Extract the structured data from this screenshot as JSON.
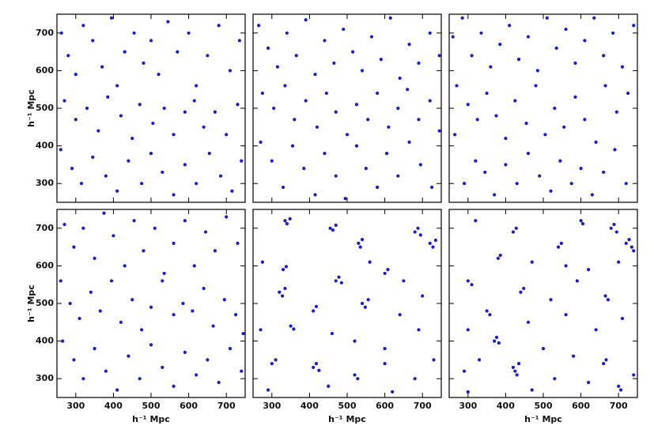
{
  "chart_data": [
    {
      "type": "scatter",
      "color": "#1a1ad0",
      "xlim": [
        250,
        750
      ],
      "ylim": [
        250,
        750
      ],
      "xticks": [
        300,
        400,
        500,
        600,
        700
      ],
      "yticks": [
        300,
        400,
        500,
        600,
        700
      ],
      "xtick_labels": false,
      "ytick_labels": true,
      "ylabel": "h⁻¹ Mpc",
      "x": [
        262,
        280,
        300,
        320,
        345,
        370,
        395,
        410,
        430,
        455,
        480,
        500,
        520,
        545,
        570,
        600,
        620,
        650,
        680,
        710,
        735,
        270,
        300,
        330,
        360,
        385,
        420,
        450,
        470,
        505,
        535,
        560,
        590,
        615,
        640,
        670,
        700,
        730,
        260,
        290,
        315,
        345,
        380,
        410,
        440,
        475,
        500,
        530,
        560,
        590,
        620,
        655,
        685,
        715,
        740
      ],
      "values": [
        700,
        640,
        590,
        720,
        680,
        610,
        740,
        560,
        650,
        700,
        620,
        680,
        590,
        730,
        650,
        700,
        560,
        640,
        720,
        600,
        680,
        520,
        470,
        500,
        440,
        530,
        480,
        420,
        510,
        460,
        500,
        430,
        490,
        520,
        450,
        490,
        430,
        510,
        390,
        340,
        300,
        370,
        320,
        280,
        360,
        300,
        380,
        330,
        270,
        350,
        300,
        380,
        320,
        280,
        360
      ]
    },
    {
      "type": "scatter",
      "color": "#1a1ad0",
      "xlim": [
        250,
        750
      ],
      "ylim": [
        250,
        750
      ],
      "xticks": [
        300,
        400,
        500,
        600,
        700
      ],
      "yticks": [
        300,
        400,
        500,
        600,
        700
      ],
      "xtick_labels": false,
      "ytick_labels": false,
      "x": [
        265,
        290,
        315,
        340,
        365,
        390,
        415,
        440,
        465,
        490,
        515,
        540,
        565,
        590,
        615,
        640,
        665,
        690,
        720,
        745,
        275,
        305,
        335,
        360,
        390,
        420,
        445,
        470,
        500,
        525,
        555,
        580,
        610,
        635,
        660,
        690,
        720,
        745,
        270,
        300,
        330,
        355,
        385,
        415,
        440,
        470,
        495,
        525,
        550,
        580,
        605,
        635,
        665,
        695,
        725
      ],
      "values": [
        720,
        660,
        610,
        700,
        640,
        735,
        590,
        680,
        620,
        710,
        650,
        600,
        690,
        630,
        740,
        580,
        670,
        620,
        700,
        640,
        540,
        500,
        560,
        470,
        520,
        450,
        540,
        490,
        430,
        510,
        470,
        540,
        450,
        500,
        550,
        470,
        520,
        440,
        410,
        360,
        290,
        400,
        340,
        270,
        380,
        320,
        260,
        400,
        340,
        290,
        380,
        320,
        410,
        350,
        290
      ]
    },
    {
      "type": "scatter",
      "color": "#1a1ad0",
      "xlim": [
        250,
        750
      ],
      "ylim": [
        250,
        750
      ],
      "xticks": [
        300,
        400,
        500,
        600,
        700
      ],
      "yticks": [
        300,
        400,
        500,
        600,
        700
      ],
      "xtick_labels": false,
      "ytick_labels": false,
      "x": [
        260,
        285,
        310,
        335,
        360,
        385,
        410,
        435,
        460,
        485,
        510,
        535,
        560,
        585,
        610,
        635,
        660,
        685,
        710,
        740,
        270,
        300,
        325,
        350,
        375,
        400,
        425,
        455,
        480,
        505,
        530,
        555,
        585,
        610,
        640,
        665,
        695,
        725,
        265,
        290,
        320,
        345,
        370,
        400,
        430,
        460,
        490,
        520,
        545,
        575,
        600,
        630,
        660,
        690,
        720
      ],
      "values": [
        690,
        740,
        640,
        700,
        610,
        670,
        720,
        630,
        690,
        600,
        740,
        660,
        710,
        620,
        680,
        740,
        640,
        700,
        610,
        720,
        560,
        510,
        470,
        540,
        480,
        420,
        520,
        460,
        560,
        430,
        500,
        450,
        530,
        470,
        410,
        560,
        490,
        540,
        430,
        300,
        360,
        330,
        270,
        350,
        300,
        380,
        320,
        280,
        360,
        300,
        340,
        270,
        330,
        390,
        300
      ]
    },
    {
      "type": "scatter",
      "color": "#1a1ad0",
      "xlim": [
        250,
        750
      ],
      "ylim": [
        250,
        750
      ],
      "xticks": [
        300,
        400,
        500,
        600,
        700
      ],
      "yticks": [
        300,
        400,
        500,
        600,
        700
      ],
      "xtick_labels": true,
      "ytick_labels": true,
      "xlabel": "h⁻¹ Mpc",
      "ylabel": "h⁻¹ Mpc",
      "x": [
        270,
        295,
        320,
        350,
        375,
        400,
        430,
        455,
        480,
        510,
        535,
        560,
        590,
        615,
        645,
        670,
        700,
        730,
        260,
        285,
        310,
        340,
        365,
        395,
        420,
        450,
        475,
        500,
        530,
        560,
        585,
        610,
        640,
        665,
        695,
        725,
        745,
        265,
        295,
        320,
        350,
        380,
        410,
        440,
        470,
        500,
        530,
        560,
        590,
        620,
        650,
        680,
        710,
        740
      ],
      "values": [
        710,
        650,
        700,
        620,
        740,
        680,
        600,
        720,
        640,
        700,
        580,
        660,
        720,
        600,
        690,
        640,
        730,
        660,
        560,
        500,
        460,
        530,
        480,
        560,
        450,
        510,
        430,
        490,
        560,
        470,
        500,
        480,
        540,
        440,
        510,
        470,
        420,
        400,
        350,
        300,
        380,
        320,
        270,
        360,
        300,
        390,
        330,
        280,
        370,
        310,
        350,
        290,
        380,
        320
      ]
    },
    {
      "type": "scatter",
      "color": "#1a1ad0",
      "xlim": [
        250,
        750
      ],
      "ylim": [
        250,
        750
      ],
      "xticks": [
        300,
        400,
        500,
        600,
        700
      ],
      "yticks": [
        300,
        400,
        500,
        600,
        700
      ],
      "xtick_labels": true,
      "ytick_labels": false,
      "xlabel": "h⁻¹ Mpc",
      "x": [
        335,
        340,
        348,
        455,
        462,
        470,
        530,
        535,
        540,
        680,
        688,
        695,
        720,
        728,
        735,
        275,
        330,
        338,
        470,
        478,
        485,
        560,
        600,
        608,
        650,
        320,
        328,
        335,
        410,
        418,
        540,
        548,
        556,
        640,
        700,
        270,
        350,
        358,
        460,
        520,
        600,
        690,
        300,
        310,
        410,
        418,
        425,
        520,
        528,
        600,
        680,
        730,
        290,
        450,
        620
      ],
      "values": [
        720,
        712,
        725,
        700,
        695,
        708,
        660,
        650,
        670,
        690,
        700,
        682,
        660,
        650,
        668,
        610,
        590,
        598,
        560,
        570,
        555,
        610,
        580,
        590,
        560,
        530,
        520,
        540,
        480,
        492,
        500,
        490,
        510,
        470,
        520,
        430,
        440,
        432,
        420,
        400,
        380,
        430,
        340,
        350,
        330,
        340,
        322,
        310,
        300,
        340,
        300,
        350,
        270,
        280,
        265
      ]
    },
    {
      "type": "scatter",
      "color": "#1a1ad0",
      "xlim": [
        250,
        750
      ],
      "ylim": [
        250,
        750
      ],
      "xticks": [
        300,
        400,
        500,
        600,
        700
      ],
      "yticks": [
        300,
        400,
        500,
        600,
        700
      ],
      "xtick_labels": true,
      "ytick_labels": false,
      "xlabel": "h⁻¹ Mpc",
      "x": [
        320,
        420,
        428,
        600,
        605,
        680,
        688,
        695,
        720,
        728,
        735,
        740,
        540,
        548,
        380,
        386,
        470,
        560,
        620,
        700,
        300,
        310,
        440,
        448,
        520,
        590,
        665,
        672,
        350,
        358,
        460,
        560,
        640,
        710,
        300,
        370,
        376,
        382,
        500,
        580,
        660,
        667,
        290,
        330,
        420,
        425,
        430,
        435,
        530,
        620,
        700,
        706,
        300,
        470,
        740
      ],
      "values": [
        720,
        690,
        700,
        720,
        712,
        700,
        710,
        690,
        660,
        670,
        650,
        640,
        650,
        660,
        620,
        628,
        610,
        600,
        590,
        610,
        560,
        550,
        530,
        540,
        510,
        560,
        520,
        510,
        480,
        470,
        450,
        470,
        430,
        460,
        430,
        400,
        410,
        395,
        380,
        360,
        340,
        350,
        320,
        350,
        330,
        320,
        310,
        340,
        300,
        290,
        280,
        270,
        265,
        270,
        310
      ]
    }
  ]
}
